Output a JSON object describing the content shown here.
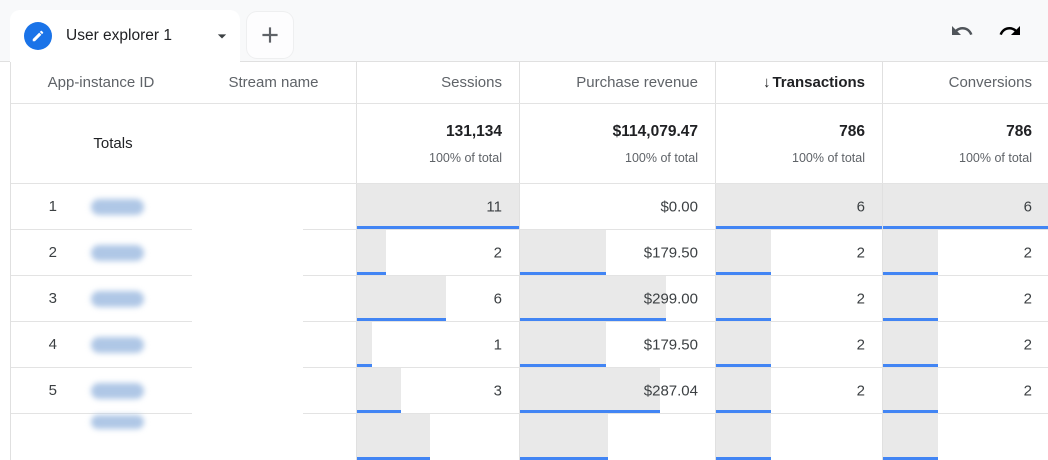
{
  "tab_bar": {
    "active_tab_label": "User explorer 1",
    "add_tab_icon": "plus-icon",
    "edit_icon": "pencil-icon",
    "dropdown_icon": "chevron-down-icon",
    "undo_icon": "undo-icon",
    "redo_icon": "redo-icon"
  },
  "table": {
    "headers": {
      "app_instance_id": "App-instance ID",
      "stream_name": "Stream name",
      "sessions": "Sessions",
      "purchase_revenue": "Purchase revenue",
      "transactions": "Transactions",
      "conversions": "Conversions"
    },
    "sort": {
      "sorted_column": "Transactions",
      "direction": "descending",
      "indicator": "↓"
    },
    "totals_row": {
      "label": "Totals",
      "sessions": {
        "value": "131,134",
        "share": "100% of total"
      },
      "purchase_revenue": {
        "value": "$114,079.47",
        "share": "100% of total"
      },
      "transactions": {
        "value": "786",
        "share": "100% of total"
      },
      "conversions": {
        "value": "786",
        "share": "100% of total"
      }
    },
    "redactions": {
      "app_instance_id": "blurred",
      "stream_name": "hidden"
    },
    "rows": [
      {
        "index": "1",
        "sessions": {
          "value": "11",
          "bar": 100
        },
        "purchase_revenue": {
          "value": "$0.00",
          "bar": 0
        },
        "transactions": {
          "value": "6",
          "bar": 100
        },
        "conversions": {
          "value": "6",
          "bar": 100
        }
      },
      {
        "index": "2",
        "sessions": {
          "value": "2",
          "bar": 18
        },
        "purchase_revenue": {
          "value": "$179.50",
          "bar": 44
        },
        "transactions": {
          "value": "2",
          "bar": 33
        },
        "conversions": {
          "value": "2",
          "bar": 33
        }
      },
      {
        "index": "3",
        "sessions": {
          "value": "6",
          "bar": 55
        },
        "purchase_revenue": {
          "value": "$299.00",
          "bar": 75
        },
        "transactions": {
          "value": "2",
          "bar": 33
        },
        "conversions": {
          "value": "2",
          "bar": 33
        }
      },
      {
        "index": "4",
        "sessions": {
          "value": "1",
          "bar": 9
        },
        "purchase_revenue": {
          "value": "$179.50",
          "bar": 44
        },
        "transactions": {
          "value": "2",
          "bar": 33
        },
        "conversions": {
          "value": "2",
          "bar": 33
        }
      },
      {
        "index": "5",
        "sessions": {
          "value": "3",
          "bar": 27
        },
        "purchase_revenue": {
          "value": "$287.04",
          "bar": 72
        },
        "transactions": {
          "value": "2",
          "bar": 33
        },
        "conversions": {
          "value": "2",
          "bar": 33
        }
      },
      {
        "index": "",
        "partial": true,
        "sessions": {
          "value": "",
          "bar": 45
        },
        "purchase_revenue": {
          "value": "",
          "bar": 45
        },
        "transactions": {
          "value": "",
          "bar": 33
        },
        "conversions": {
          "value": "",
          "bar": 33
        }
      }
    ]
  },
  "colors": {
    "accent_blue": "#1a73e8",
    "bar_blue": "#4285f4",
    "bar_gray": "#e9e9e9",
    "redacted_pill_blue": "#afc7e6",
    "topbar_bg": "#f8f9fa"
  }
}
